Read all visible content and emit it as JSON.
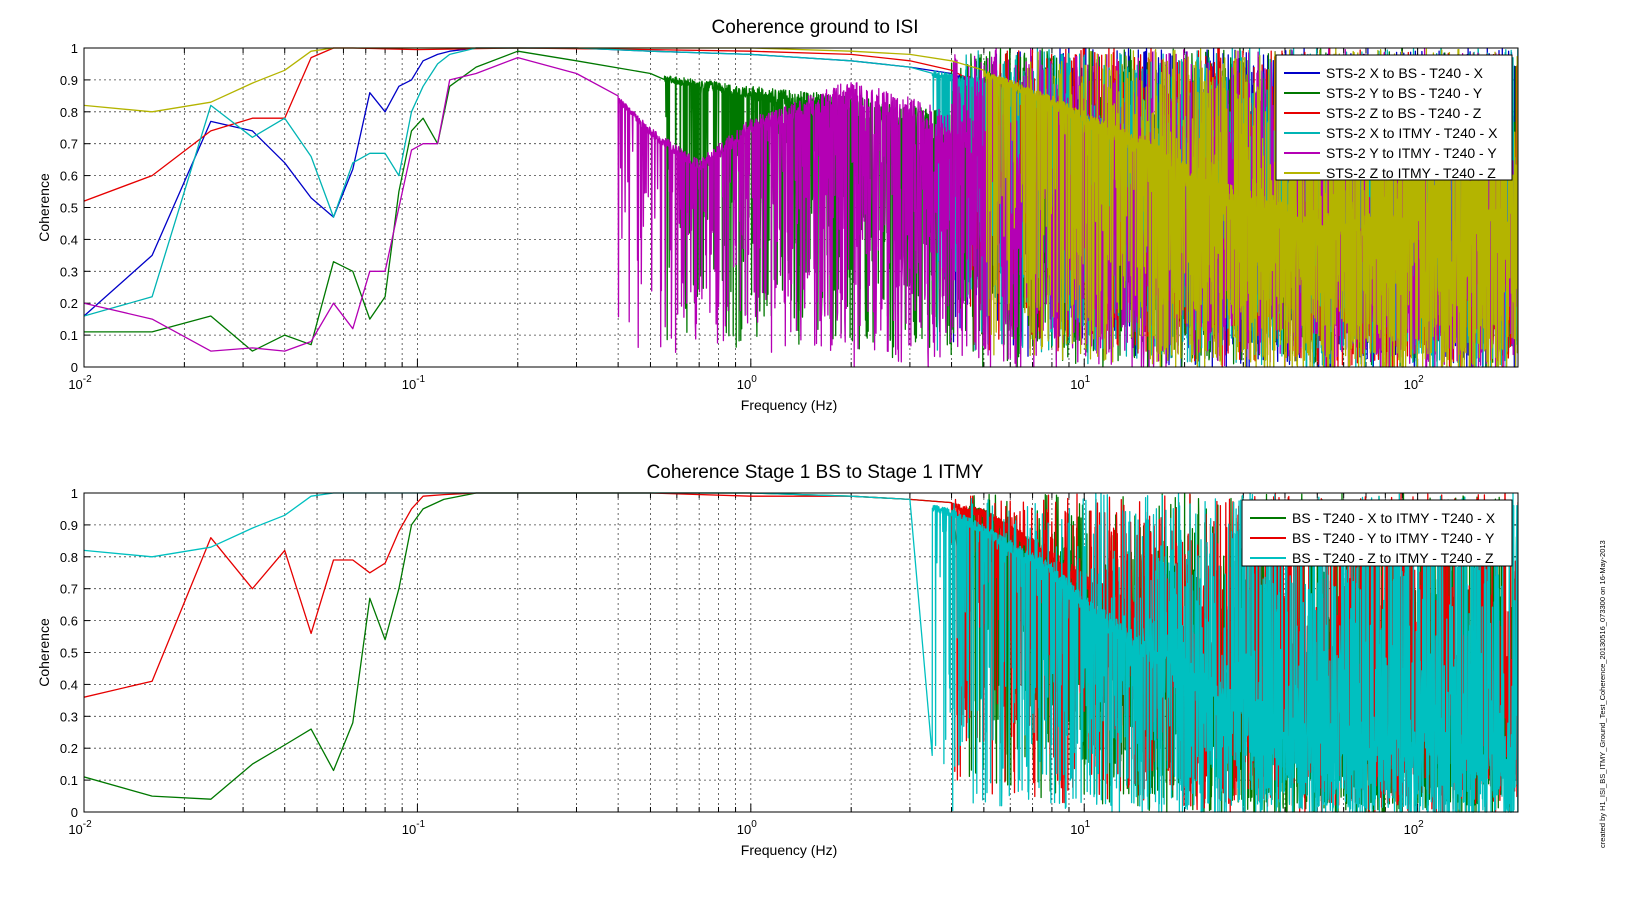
{
  "chart_data": [
    {
      "type": "line",
      "title": "Coherence ground to ISI",
      "xlabel": "Frequency (Hz)",
      "ylabel": "Coherence",
      "xscale": "log",
      "xlim": [
        0.01,
        200
      ],
      "ylim": [
        0,
        1
      ],
      "x_ticks": [
        {
          "base": "10",
          "exp": "-2"
        },
        {
          "base": "10",
          "exp": "-1"
        },
        {
          "base": "10",
          "exp": "0"
        },
        {
          "base": "10",
          "exp": "1"
        },
        {
          "base": "10",
          "exp": "2"
        }
      ],
      "y_ticks": [
        "0",
        "0.1",
        "0.2",
        "0.3",
        "0.4",
        "0.5",
        "0.6",
        "0.7",
        "0.8",
        "0.9",
        "1"
      ],
      "grid": true,
      "legend_position": "top-right",
      "series": [
        {
          "name": "STS-2 X to BS - T240 - X",
          "color": "#0000c8",
          "x": [
            0.01,
            0.016,
            0.024,
            0.032,
            0.04,
            0.048,
            0.056,
            0.064,
            0.072,
            0.08,
            0.088,
            0.096,
            0.104,
            0.115,
            0.125,
            0.15,
            0.2,
            0.3,
            0.5,
            1,
            2,
            3,
            4,
            5,
            6,
            8,
            10,
            15,
            20,
            30,
            50,
            100,
            200
          ],
          "values": [
            0.16,
            0.35,
            0.77,
            0.74,
            0.64,
            0.53,
            0.47,
            0.62,
            0.86,
            0.8,
            0.88,
            0.9,
            0.96,
            0.98,
            0.99,
            1.0,
            1.0,
            1.0,
            0.99,
            0.98,
            0.96,
            0.94,
            0.92,
            0.9,
            0.88,
            0.85,
            0.82,
            0.78,
            0.75,
            0.72,
            0.7,
            0.7,
            0.68
          ],
          "noise_from": 4,
          "noise_floor_end": 0.02,
          "noise_floor": 0.03
        },
        {
          "name": "STS-2 Y to BS - T240 - Y",
          "color": "#007800",
          "x": [
            0.01,
            0.016,
            0.024,
            0.032,
            0.04,
            0.048,
            0.056,
            0.064,
            0.072,
            0.08,
            0.088,
            0.096,
            0.104,
            0.115,
            0.125,
            0.15,
            0.2,
            0.3,
            0.5,
            1,
            2,
            3,
            4,
            5,
            6,
            8,
            10,
            15,
            20,
            30,
            50,
            100,
            200
          ],
          "values": [
            0.11,
            0.11,
            0.16,
            0.05,
            0.1,
            0.07,
            0.33,
            0.3,
            0.15,
            0.22,
            0.55,
            0.74,
            0.78,
            0.7,
            0.88,
            0.94,
            0.99,
            0.96,
            0.92,
            0.88,
            0.85,
            0.82,
            0.8,
            0.77,
            0.74,
            0.7,
            0.66,
            0.6,
            0.55,
            0.5,
            0.45,
            0.42,
            0.4
          ],
          "noise_from": 0.55,
          "noise_floor_end": 0.03,
          "noise_floor": 0.06
        },
        {
          "name": "STS-2 Z to BS - T240 - Z",
          "color": "#e60000",
          "x": [
            0.01,
            0.016,
            0.024,
            0.032,
            0.04,
            0.048,
            0.056,
            0.064,
            0.1,
            0.2,
            0.5,
            1,
            2,
            3,
            4,
            5,
            6,
            8,
            10,
            15,
            20,
            30,
            50,
            100,
            200
          ],
          "values": [
            0.52,
            0.6,
            0.74,
            0.78,
            0.78,
            0.97,
            1.0,
            1.0,
            0.995,
            1.0,
            0.995,
            0.99,
            0.98,
            0.96,
            0.93,
            0.9,
            0.85,
            0.8,
            0.75,
            0.7,
            0.66,
            0.6,
            0.55,
            0.5,
            0.48
          ],
          "noise_from": 4.5,
          "noise_floor_end": 0.02,
          "noise_floor": 0.05
        },
        {
          "name": "STS-2 X to ITMY - T240 - X",
          "color": "#00b4b4",
          "x": [
            0.01,
            0.016,
            0.024,
            0.032,
            0.04,
            0.048,
            0.056,
            0.064,
            0.072,
            0.08,
            0.088,
            0.096,
            0.104,
            0.115,
            0.125,
            0.15,
            0.2,
            0.3,
            0.5,
            1,
            2,
            3,
            4,
            5,
            6,
            8,
            10,
            15,
            20,
            30,
            50,
            100,
            200
          ],
          "values": [
            0.16,
            0.22,
            0.82,
            0.72,
            0.78,
            0.66,
            0.47,
            0.64,
            0.67,
            0.67,
            0.6,
            0.8,
            0.88,
            0.95,
            0.98,
            1.0,
            1.0,
            1.0,
            0.99,
            0.98,
            0.96,
            0.94,
            0.92,
            0.9,
            0.87,
            0.84,
            0.8,
            0.76,
            0.73,
            0.7,
            0.68,
            0.66,
            0.65
          ],
          "noise_from": 3.5,
          "noise_floor_end": 0.02,
          "noise_floor": 0.04
        },
        {
          "name": "STS-2 Y to ITMY - T240 - Y",
          "color": "#b400b4",
          "x": [
            0.01,
            0.016,
            0.024,
            0.032,
            0.04,
            0.048,
            0.056,
            0.064,
            0.072,
            0.08,
            0.088,
            0.096,
            0.104,
            0.115,
            0.125,
            0.15,
            0.2,
            0.3,
            0.4,
            0.5,
            0.7,
            1,
            2,
            3,
            4,
            5,
            6,
            8,
            10,
            15,
            20,
            30,
            50,
            100,
            200
          ],
          "values": [
            0.2,
            0.15,
            0.05,
            0.06,
            0.05,
            0.08,
            0.2,
            0.12,
            0.3,
            0.3,
            0.5,
            0.68,
            0.7,
            0.7,
            0.9,
            0.92,
            0.97,
            0.92,
            0.85,
            0.75,
            0.65,
            0.78,
            0.9,
            0.85,
            0.8,
            0.75,
            0.7,
            0.65,
            0.6,
            0.55,
            0.5,
            0.45,
            0.4,
            0.38,
            0.36
          ],
          "noise_from": 0.4,
          "noise_floor_end": 0.02,
          "noise_floor": 0.05
        },
        {
          "name": "STS-2 Z to ITMY - T240 - Z",
          "color": "#b4b400",
          "x": [
            0.01,
            0.016,
            0.024,
            0.032,
            0.04,
            0.048,
            0.056,
            0.064,
            0.1,
            0.2,
            0.5,
            1,
            2,
            3,
            4,
            5,
            6,
            8,
            10,
            15,
            20,
            30,
            50,
            100,
            200
          ],
          "values": [
            0.82,
            0.8,
            0.83,
            0.89,
            0.93,
            0.99,
            1.0,
            1.0,
            1.0,
            1.0,
            1.0,
            1.0,
            0.99,
            0.98,
            0.96,
            0.93,
            0.9,
            0.85,
            0.8,
            0.72,
            0.65,
            0.55,
            0.5,
            0.5,
            0.5
          ],
          "noise_from": 5,
          "noise_floor_end": 0.02,
          "noise_floor": 0.01
        }
      ]
    },
    {
      "type": "line",
      "title": "Coherence Stage 1 BS to Stage 1 ITMY",
      "xlabel": "Frequency (Hz)",
      "ylabel": "Coherence",
      "xscale": "log",
      "xlim": [
        0.01,
        200
      ],
      "ylim": [
        0,
        1
      ],
      "x_ticks": [
        {
          "base": "10",
          "exp": "-2"
        },
        {
          "base": "10",
          "exp": "-1"
        },
        {
          "base": "10",
          "exp": "0"
        },
        {
          "base": "10",
          "exp": "1"
        },
        {
          "base": "10",
          "exp": "2"
        }
      ],
      "y_ticks": [
        "0",
        "0.1",
        "0.2",
        "0.3",
        "0.4",
        "0.5",
        "0.6",
        "0.7",
        "0.8",
        "0.9",
        "1"
      ],
      "grid": true,
      "legend_position": "top-right",
      "series": [
        {
          "name": "BS - T240 - X to ITMY - T240 - X",
          "color": "#007800",
          "x": [
            0.01,
            0.016,
            0.024,
            0.032,
            0.04,
            0.048,
            0.056,
            0.064,
            0.072,
            0.08,
            0.088,
            0.096,
            0.104,
            0.12,
            0.15,
            0.2,
            0.5,
            1,
            2,
            3,
            4,
            5,
            6,
            8,
            10,
            15,
            20,
            30,
            50,
            100,
            200
          ],
          "values": [
            0.11,
            0.05,
            0.04,
            0.15,
            0.21,
            0.26,
            0.13,
            0.28,
            0.67,
            0.54,
            0.7,
            0.9,
            0.95,
            0.98,
            1.0,
            1.0,
            1.0,
            1.0,
            0.99,
            0.98,
            0.97,
            0.95,
            0.9,
            0.8,
            0.72,
            0.6,
            0.52,
            0.45,
            0.4,
            0.38,
            0.36
          ],
          "noise_from": 4.5,
          "noise_floor_end": 0.02,
          "noise_floor": 0.03
        },
        {
          "name": "BS - T240 - Y to ITMY - T240 - Y",
          "color": "#e60000",
          "x": [
            0.01,
            0.016,
            0.024,
            0.032,
            0.04,
            0.048,
            0.056,
            0.064,
            0.072,
            0.08,
            0.088,
            0.096,
            0.104,
            0.12,
            0.15,
            0.2,
            0.5,
            1,
            2,
            3,
            4,
            5,
            6,
            8,
            10,
            15,
            20,
            30,
            50,
            100,
            200
          ],
          "values": [
            0.36,
            0.41,
            0.86,
            0.7,
            0.82,
            0.56,
            0.79,
            0.79,
            0.75,
            0.78,
            0.88,
            0.95,
            0.99,
            0.995,
            1.0,
            1.0,
            1.0,
            0.99,
            0.99,
            0.98,
            0.97,
            0.95,
            0.9,
            0.82,
            0.75,
            0.65,
            0.58,
            0.5,
            0.45,
            0.42,
            0.4
          ],
          "noise_from": 4,
          "noise_floor_end": 0.02,
          "noise_floor": 0.05
        },
        {
          "name": "BS - T240 - Z to ITMY - T240 - Z",
          "color": "#00c0c0",
          "x": [
            0.01,
            0.016,
            0.024,
            0.032,
            0.04,
            0.048,
            0.056,
            0.064,
            0.1,
            0.2,
            0.5,
            1,
            2,
            3,
            4,
            5,
            6,
            8,
            10,
            15,
            20,
            30,
            50,
            100,
            200
          ],
          "values": [
            0.82,
            0.8,
            0.83,
            0.89,
            0.93,
            0.99,
            1.0,
            1.0,
            1.0,
            1.0,
            1.0,
            1.0,
            0.99,
            0.98,
            0.95,
            0.9,
            0.85,
            0.78,
            0.68,
            0.55,
            0.48,
            0.38,
            0.3,
            0.28,
            0.25
          ],
          "noise_from": 3.5,
          "noise_floor_end": 0.02,
          "noise_floor": 0.0
        }
      ]
    }
  ],
  "stamp": "created by H1_ISI_BS_ITMY_Ground_Test_Coherence_20130516_073300 on 16-May-2013"
}
